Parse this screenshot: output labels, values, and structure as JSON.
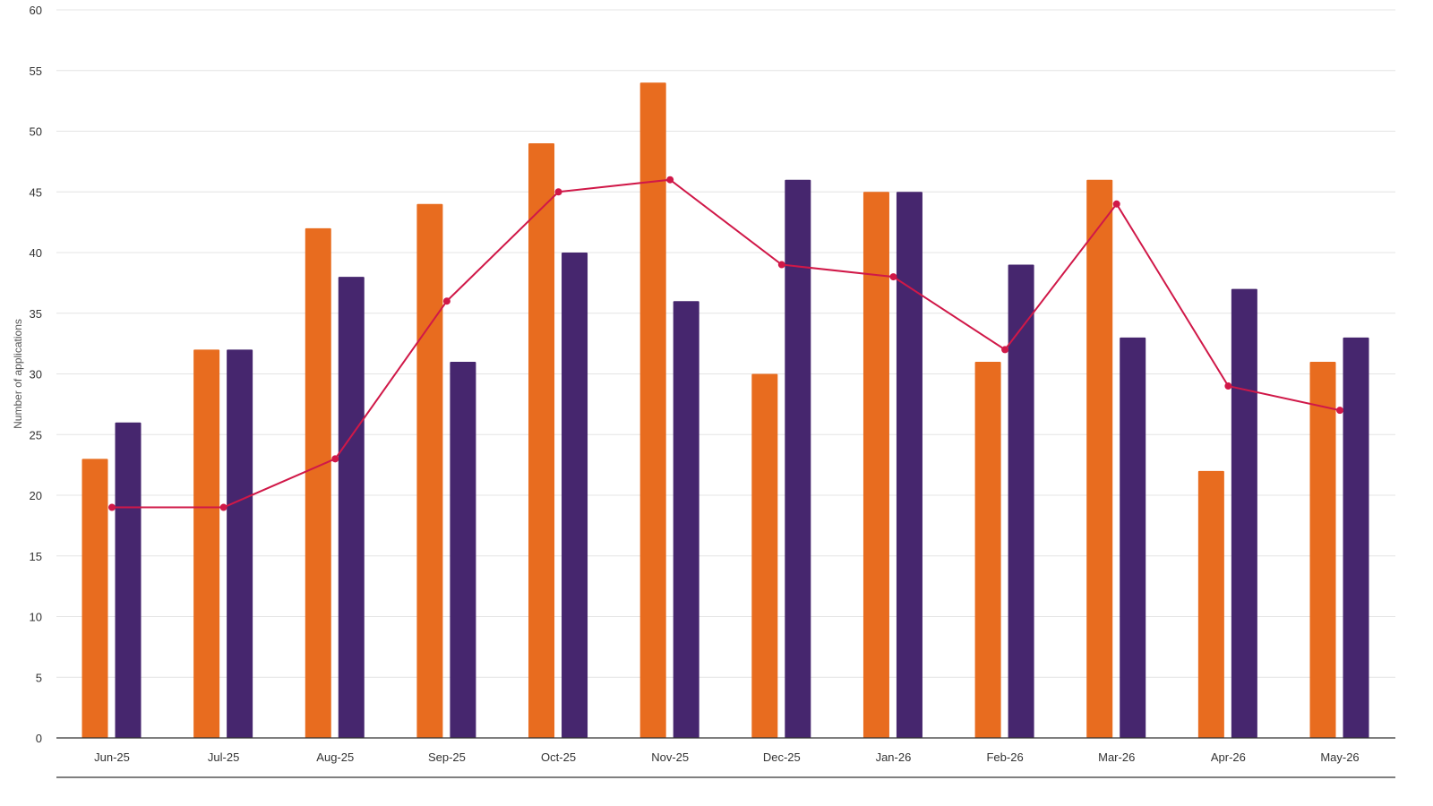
{
  "chart_data": {
    "type": "bar",
    "title": "",
    "xlabel": "",
    "ylabel": "Number of applications",
    "ylim": [
      0,
      60
    ],
    "yticks": [
      0,
      5,
      10,
      15,
      20,
      25,
      30,
      35,
      40,
      45,
      50,
      55,
      60
    ],
    "grid": true,
    "legend": "none",
    "categories": [
      "Jun-25",
      "Jul-25",
      "Aug-25",
      "Sep-25",
      "Oct-25",
      "Nov-25",
      "Dec-25",
      "Jan-26",
      "Feb-26",
      "Mar-26",
      "Apr-26",
      "May-26"
    ],
    "series": [
      {
        "kind": "bar",
        "color": "#E86C1F",
        "values": [
          23,
          32,
          42,
          44,
          49,
          54,
          30,
          45,
          31,
          46,
          22,
          31
        ]
      },
      {
        "kind": "bar",
        "color": "#46266E",
        "values": [
          26,
          32,
          38,
          31,
          40,
          36,
          46,
          45,
          39,
          33,
          37,
          33
        ]
      },
      {
        "kind": "line",
        "color": "#D01848",
        "values": [
          19,
          19,
          23,
          36,
          45,
          46,
          39,
          38,
          32,
          44,
          29,
          27
        ]
      }
    ]
  }
}
